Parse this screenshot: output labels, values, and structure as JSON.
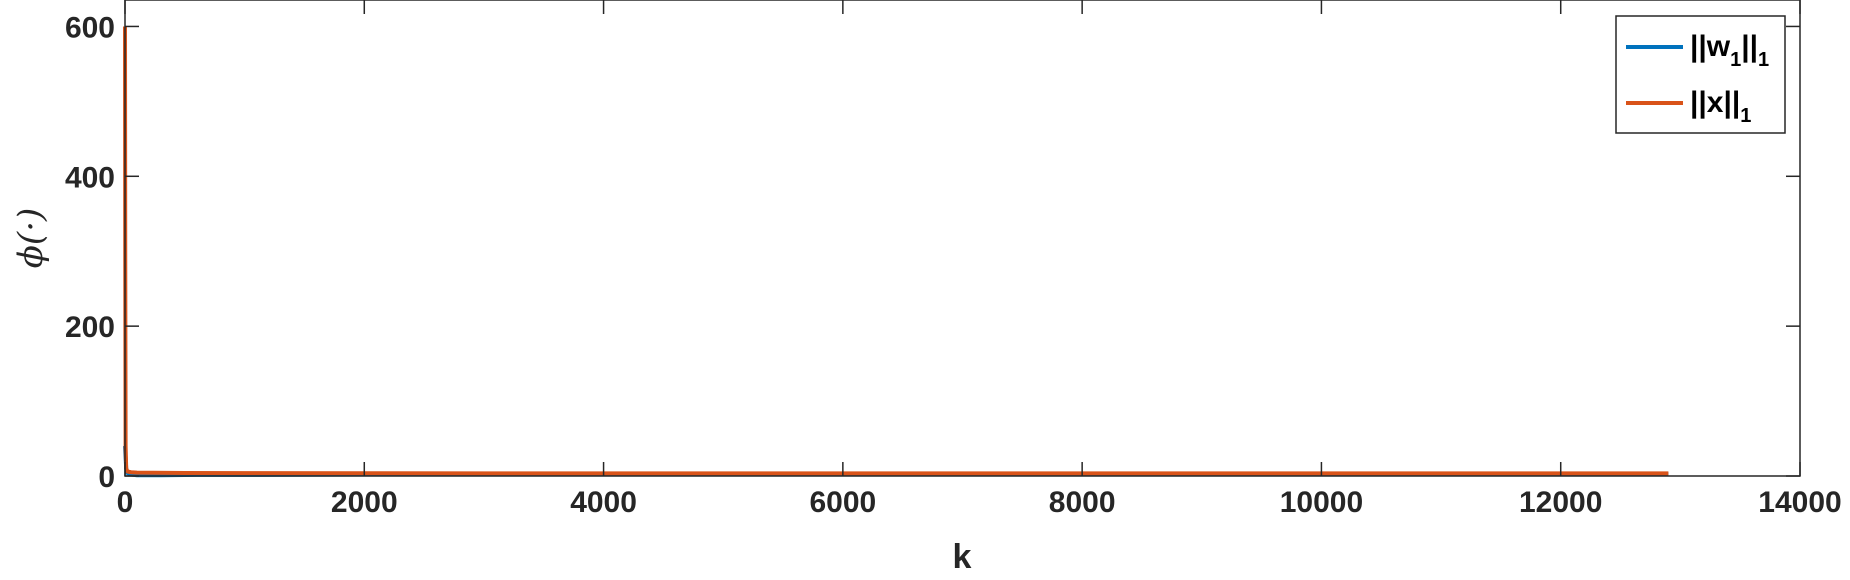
{
  "chart_data": {
    "type": "line",
    "xlabel": "k",
    "ylabel": "ϕ(·)",
    "xlim": [
      0,
      14000
    ],
    "ylim": [
      0,
      600
    ],
    "xticks": [
      0,
      2000,
      4000,
      6000,
      8000,
      10000,
      12000,
      14000
    ],
    "yticks": [
      0,
      200,
      400,
      600
    ],
    "grid": false,
    "legend": "top-right",
    "series": [
      {
        "name": "||w1||1",
        "label_main": "||w",
        "label_sub1": "1",
        "label_main2": "||",
        "label_sub2": "1",
        "color": "#0072BD",
        "x": [
          0,
          5,
          10,
          20,
          50,
          100,
          300,
          600,
          1000,
          2000,
          3000,
          4000,
          6000,
          8000,
          10000,
          12000,
          12900
        ],
        "y": [
          40,
          25,
          10,
          4,
          2,
          1,
          1,
          1.5,
          1.5,
          2,
          2.2,
          2.3,
          2.3,
          2.3,
          2.3,
          2.3,
          2.3
        ]
      },
      {
        "name": "||x||1",
        "label_main": "||x||",
        "label_sub1": "1",
        "color": "#D95319",
        "x": [
          0,
          2,
          5,
          10,
          20,
          50,
          100,
          500,
          1000,
          2000,
          3000,
          4000,
          6000,
          8000,
          10000,
          12000,
          12900
        ],
        "y": [
          600,
          300,
          40,
          10,
          6,
          5,
          4.5,
          4,
          3.8,
          3.6,
          3.5,
          3.5,
          3.5,
          3.5,
          3.5,
          3.5,
          3.5
        ]
      }
    ]
  }
}
